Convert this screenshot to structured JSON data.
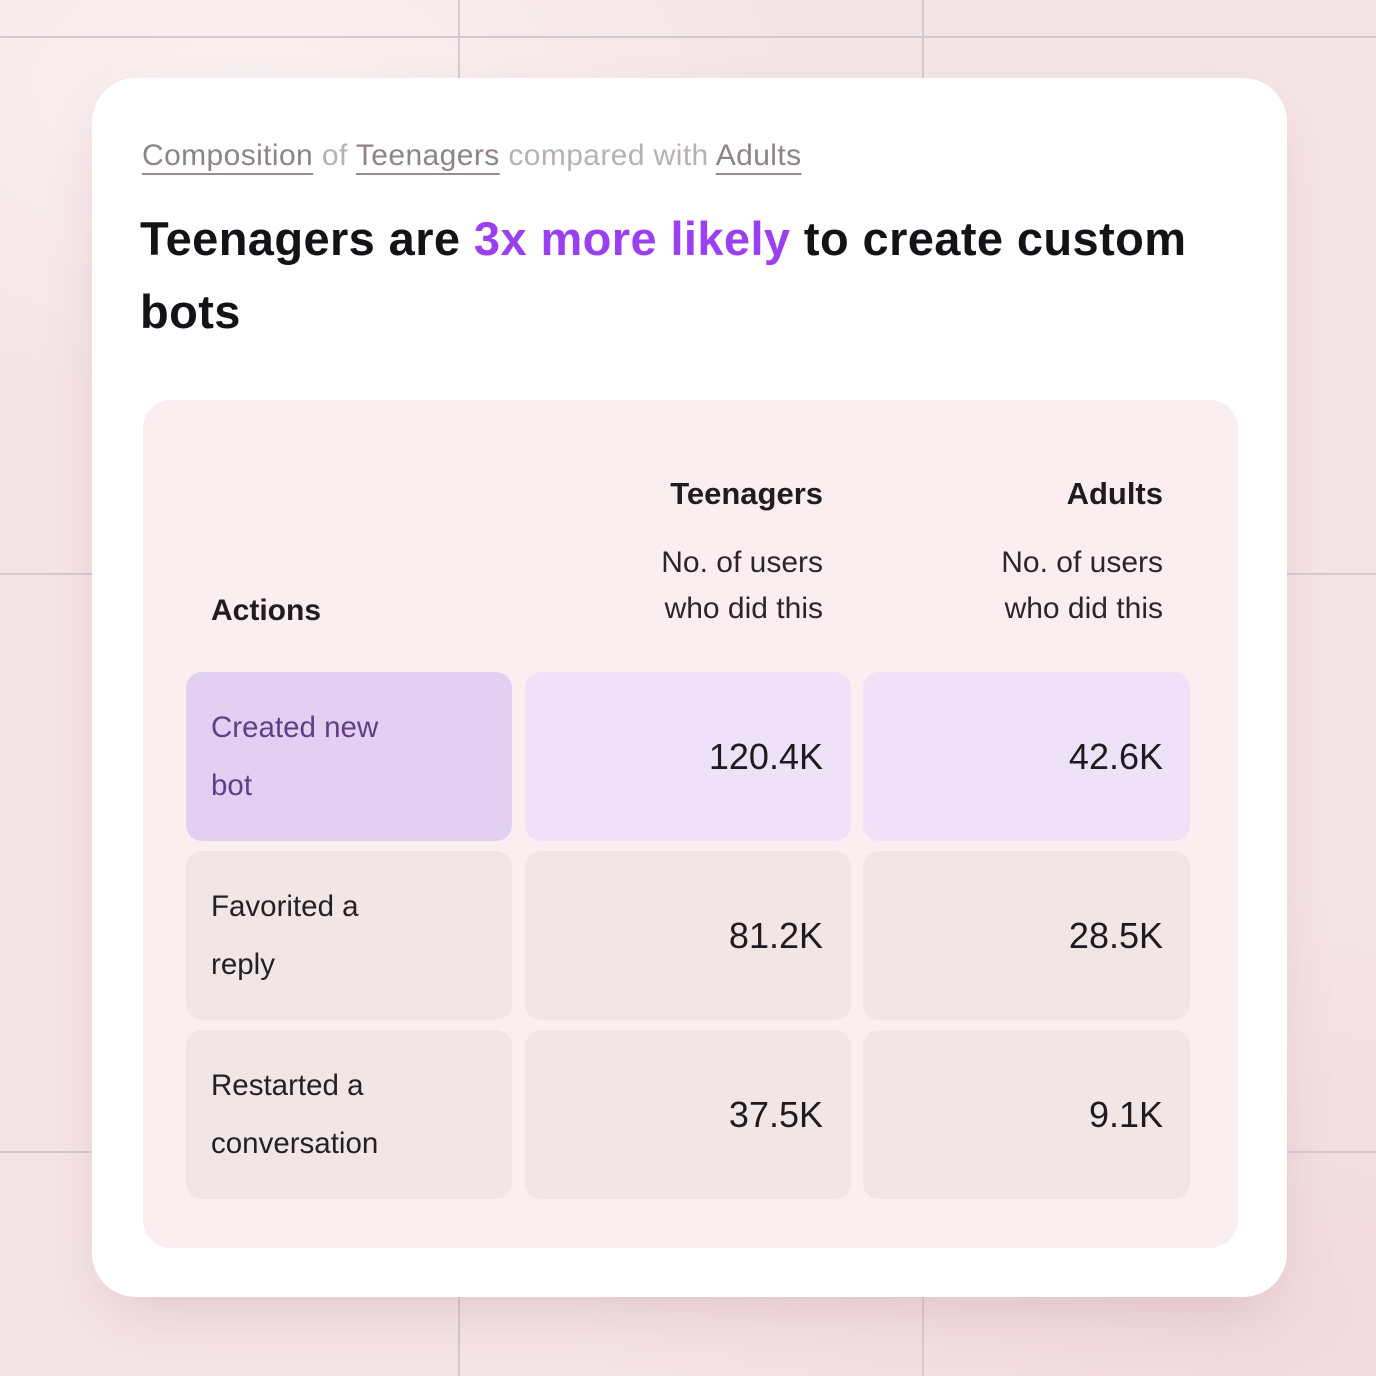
{
  "colors": {
    "page_background": "#f5e4e6",
    "card_background": "#ffffff",
    "panel_background": "#fbeef1",
    "highlight_purple": "#9b3ff2",
    "highlight_row_label_bg": "#e2cff2",
    "highlight_row_label_text": "#613e88",
    "highlight_row_value_bg": "#efe2f8",
    "neutral_cell_bg": "#f1e5e6",
    "eyebrow_term_color": "#8d8389",
    "eyebrow_plain_color": "#b9b0b5"
  },
  "eyebrow": {
    "segments": [
      {
        "text": "Composition"
      },
      {
        "text": " of "
      },
      {
        "text": "Teenagers"
      },
      {
        "text": " compared with "
      },
      {
        "text": "Adults"
      }
    ]
  },
  "headline": {
    "part1": "Teenagers are ",
    "highlight": "3x more likely",
    "part2": " to create custom bots"
  },
  "table": {
    "row_header": "Actions",
    "columns": [
      {
        "group": "Teenagers",
        "subheader": "No. of users\nwho did this"
      },
      {
        "group": "Adults",
        "subheader": "No. of users\nwho did this"
      }
    ],
    "rows": [
      {
        "action": "Created new bot",
        "teenagers": "120.4K",
        "adults": "42.6K",
        "highlighted": true
      },
      {
        "action": "Favorited a reply",
        "teenagers": "81.2K",
        "adults": "28.5K",
        "highlighted": false
      },
      {
        "action": "Restarted a conversation",
        "teenagers": "37.5K",
        "adults": "9.1K",
        "highlighted": false
      }
    ]
  },
  "chart_data": {
    "type": "table",
    "title": "Teenagers are 3x more likely to create custom bots",
    "subtitle": "Composition of Teenagers compared with Adults",
    "columns": [
      "Actions",
      "Teenagers — No. of users who did this",
      "Adults — No. of users who did this"
    ],
    "rows": [
      [
        "Created new bot",
        "120.4K",
        "42.6K"
      ],
      [
        "Favorited a reply",
        "81.2K",
        "28.5K"
      ],
      [
        "Restarted a conversation",
        "37.5K",
        "9.1K"
      ]
    ],
    "values_numeric": [
      [
        120400,
        42600
      ],
      [
        81200,
        28500
      ],
      [
        37500,
        9100
      ]
    ],
    "highlighted_row": "Created new bot",
    "legend_position": "none",
    "grid": false
  }
}
